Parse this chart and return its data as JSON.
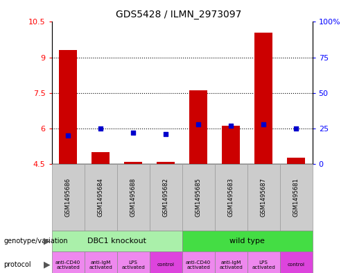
{
  "title": "GDS5428 / ILMN_2973097",
  "samples": [
    "GSM1495686",
    "GSM1495684",
    "GSM1495688",
    "GSM1495682",
    "GSM1495685",
    "GSM1495683",
    "GSM1495687",
    "GSM1495681"
  ],
  "count_values": [
    9.3,
    5.0,
    4.57,
    4.57,
    7.6,
    6.1,
    10.05,
    4.75
  ],
  "percentile_values": [
    20,
    25,
    22,
    21,
    28,
    27,
    28,
    25
  ],
  "ylim_left": [
    4.5,
    10.5
  ],
  "ylim_right": [
    0,
    100
  ],
  "yticks_left": [
    4.5,
    6.0,
    7.5,
    9.0,
    10.5
  ],
  "yticks_right": [
    0,
    25,
    50,
    75,
    100
  ],
  "ytick_labels_left": [
    "4.5",
    "6",
    "7.5",
    "9",
    "10.5"
  ],
  "ytick_labels_right": [
    "0",
    "25",
    "50",
    "75",
    "100%"
  ],
  "hlines": [
    6.0,
    7.5,
    9.0
  ],
  "bar_color": "#cc0000",
  "dot_color": "#0000cc",
  "bar_bottom": 4.5,
  "genotype_groups": [
    {
      "label": "DBC1 knockout",
      "start": 0,
      "end": 4,
      "color": "#aaf0aa"
    },
    {
      "label": "wild type",
      "start": 4,
      "end": 8,
      "color": "#44dd44"
    }
  ],
  "protocol_labels": [
    "anti-CD40\nactivated",
    "anti-IgM\nactivated",
    "LPS\nactivated",
    "control",
    "anti-CD40\nactivated",
    "anti-IgM\nactivated",
    "LPS\nactivated",
    "control"
  ],
  "protocol_is_control": [
    false,
    false,
    false,
    true,
    false,
    false,
    false,
    true
  ],
  "activated_color": "#ee88ee",
  "control_color": "#dd44dd",
  "legend_count_color": "#cc0000",
  "legend_dot_color": "#0000cc",
  "sample_bg_color": "#cccccc",
  "sample_border_color": "#999999"
}
